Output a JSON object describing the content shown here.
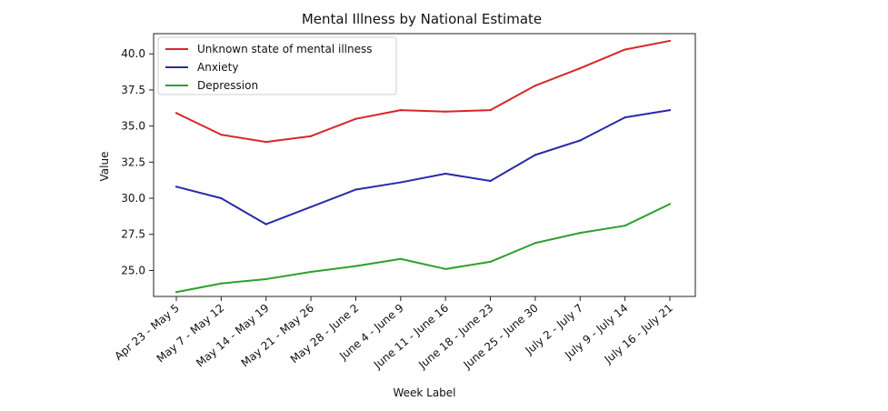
{
  "chart_data": {
    "type": "line",
    "title": "Mental Illness by National Estimate",
    "xlabel": "Week Label",
    "ylabel": "Value",
    "categories": [
      "Apr 23 - May 5",
      "May 7 - May 12",
      "May 14 - May 19",
      "May 21 - May 26",
      "May 28 - June 2",
      "June 4 - June 9",
      "June 11 - June 16",
      "June 18 - June 23",
      "June 25 - June 30",
      "July 2 - July 7",
      "July 9 - July 14",
      "July 16 - July 21"
    ],
    "ylim": [
      23.2,
      41.4
    ],
    "yticks": [
      "25.0",
      "27.5",
      "30.0",
      "32.5",
      "35.0",
      "37.5",
      "40.0"
    ],
    "legend_position": "upper-left",
    "grid": false,
    "series": [
      {
        "name": "Unknown state of mental illness",
        "color": "#d62728",
        "values": [
          35.9,
          34.4,
          33.9,
          34.3,
          35.5,
          36.1,
          36.0,
          36.1,
          37.8,
          39.0,
          40.3,
          40.9
        ]
      },
      {
        "name": "Anxiety",
        "color": "#2a2aa8",
        "values": [
          30.8,
          30.0,
          28.2,
          29.4,
          30.6,
          31.1,
          31.7,
          31.2,
          33.0,
          34.0,
          35.6,
          36.1
        ]
      },
      {
        "name": "Depression",
        "color": "#2ca02c",
        "values": [
          23.5,
          24.1,
          24.4,
          24.9,
          25.3,
          25.8,
          25.1,
          25.6,
          26.9,
          27.6,
          28.1,
          29.6
        ]
      }
    ]
  }
}
